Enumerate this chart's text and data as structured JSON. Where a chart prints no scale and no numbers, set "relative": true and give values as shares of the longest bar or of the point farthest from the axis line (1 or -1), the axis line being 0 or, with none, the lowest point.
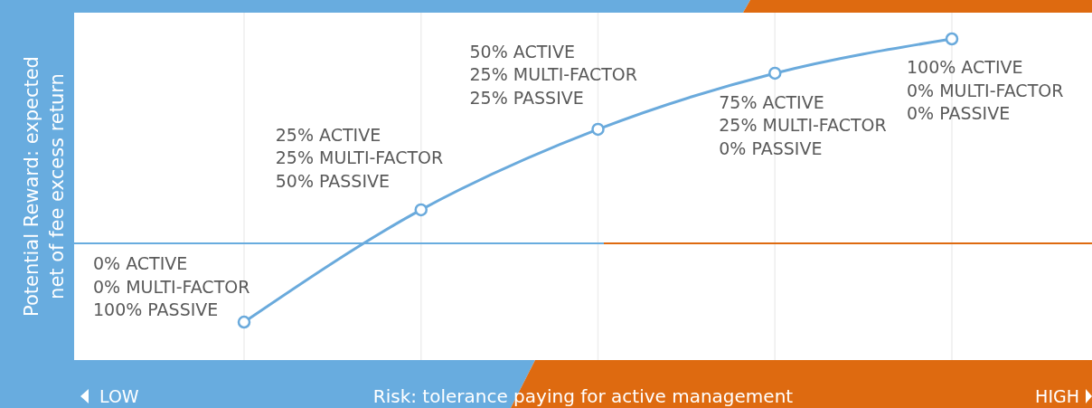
{
  "chart_data": {
    "type": "line",
    "relative": true,
    "categories": [
      null,
      null,
      null,
      null,
      null
    ],
    "values": [
      -0.385,
      0.164,
      0.558,
      0.832,
      1
    ],
    "color": "#6aaadc",
    "marker": "circle",
    "grid": "x",
    "xlabel": "Risk: tolerance paying for active management",
    "ylabel": "Potential Reward: expected\nnet of fee excess return",
    "annotations": [
      "0% ACTIVE\n0% MULTI-FACTOR\n100% PASSIVE",
      "25% ACTIVE\n25% MULTI-FACTOR\n50% PASSIVE",
      "50% ACTIVE\n25% MULTI-FACTOR\n25% PASSIVE",
      "75% ACTIVE\n25% MULTI-FACTOR\n0% PASSIVE",
      "100% ACTIVE\n0% MULTI-FACTOR\n0% PASSIVE",
      "LOW",
      "HIGH"
    ]
  }
}
